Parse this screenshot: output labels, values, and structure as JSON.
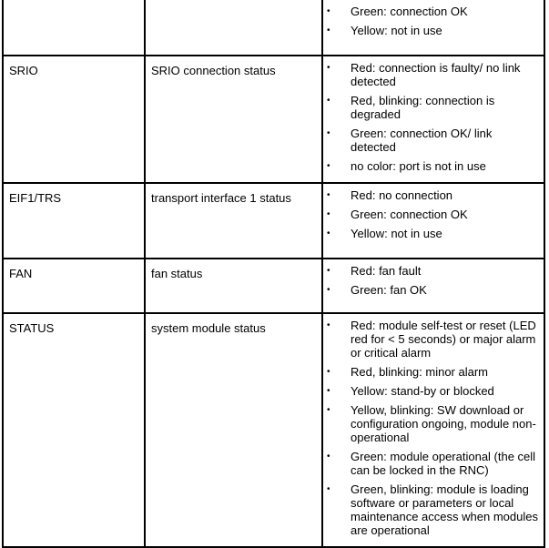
{
  "rows": [
    {
      "name": "",
      "description": "",
      "states": [
        "Green: connection OK",
        "Yellow: not in use"
      ]
    },
    {
      "name": "SRIO",
      "description": "SRIO connection status",
      "states": [
        "Red: connection is faulty/ no link detected",
        "Red, blinking: connection is degraded",
        "Green: connection OK/ link detected",
        "no color: port is not in use"
      ]
    },
    {
      "name": "EIF1/TRS",
      "description": "transport interface 1 status",
      "states": [
        "Red: no connection",
        "Green: connection OK",
        "Yellow: not in use"
      ]
    },
    {
      "name": "FAN",
      "description": "fan status",
      "states": [
        "Red: fan fault",
        "Green: fan OK"
      ]
    },
    {
      "name": "STATUS",
      "description": "system module status",
      "states": [
        "Red: module self-test or reset (LED red for < 5 seconds) or major alarm or critical alarm",
        "Red, blinking: minor alarm",
        "Yellow: stand-by or blocked",
        "Yellow, blinking: SW download or configuration ongoing, module non-operational",
        "Green: module operational (the cell can be locked in the RNC)",
        "Green, blinking: module is loading software or parameters or local maintenance access when modules are operational"
      ]
    }
  ]
}
